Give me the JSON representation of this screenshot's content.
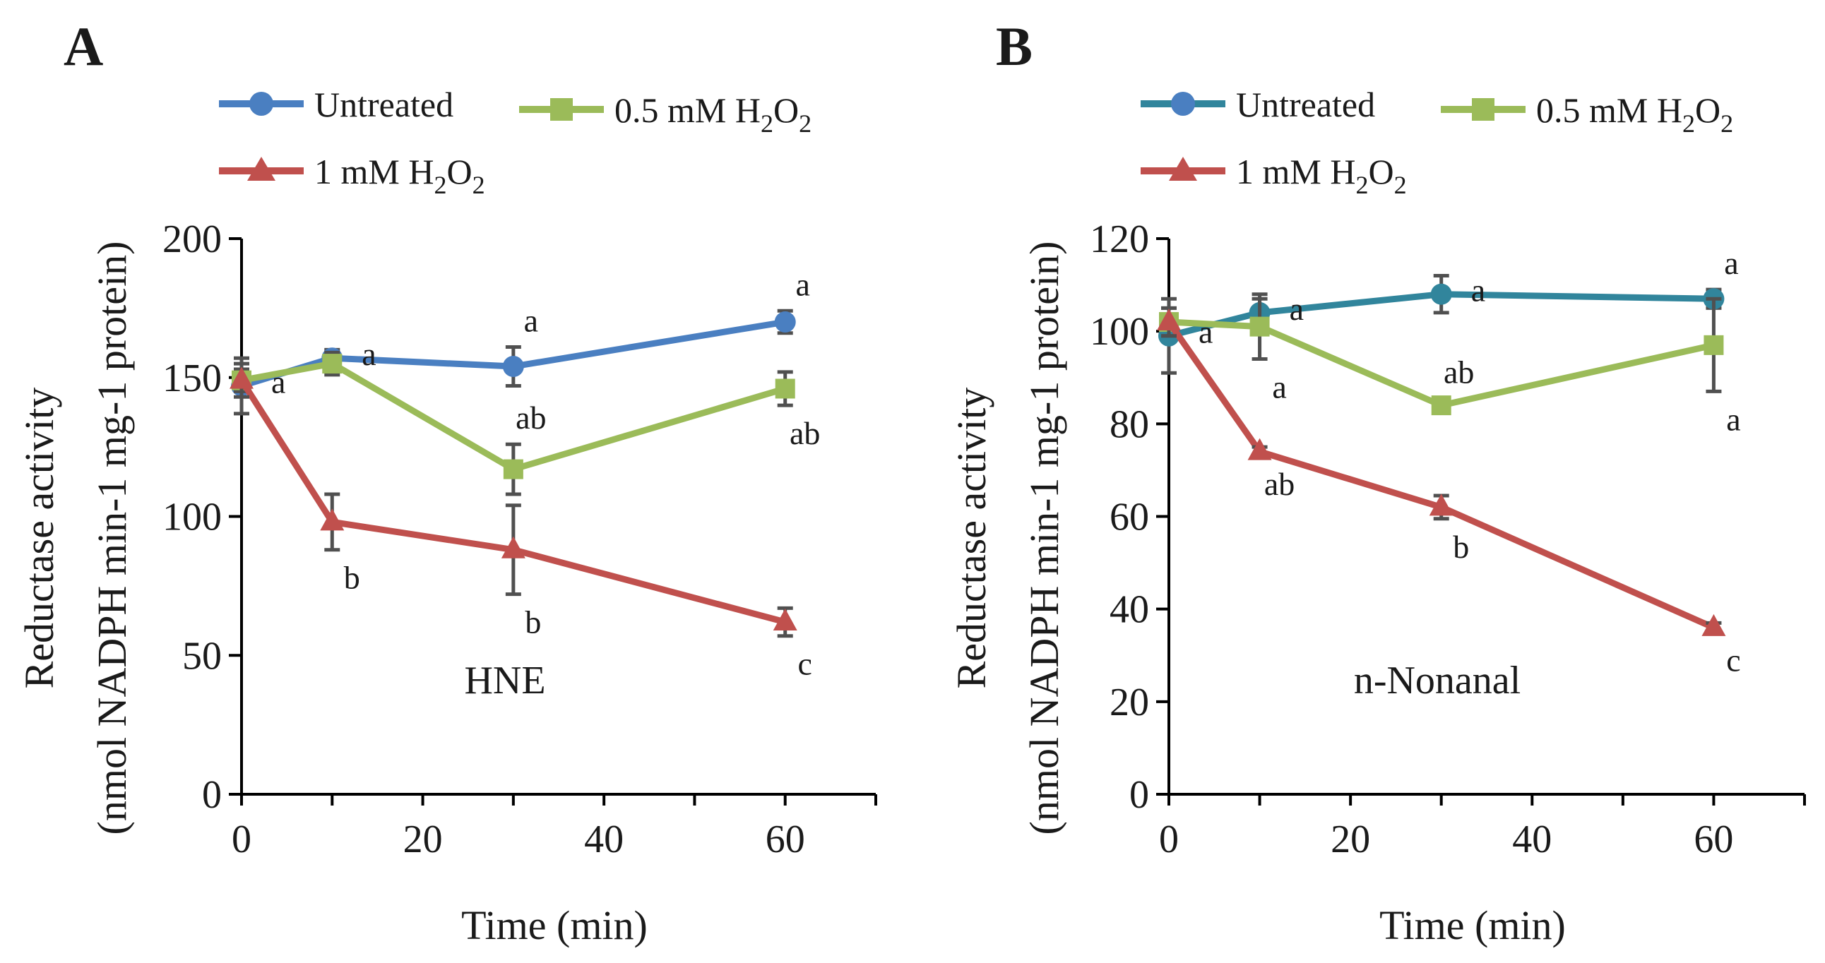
{
  "chart_data": [
    {
      "panel": "A",
      "type": "line",
      "annotation": "HNE",
      "xlabel": "Time (min)",
      "ylabel_line1": "Reductase activity",
      "ylabel_line2": "(nmol NADPH min-1 mg-1 protein)",
      "xlim": [
        0,
        70
      ],
      "ylim": [
        0,
        200
      ],
      "xticks": [
        0,
        20,
        40,
        60
      ],
      "yticks": [
        0,
        50,
        100,
        150,
        200
      ],
      "x": [
        0,
        10,
        30,
        60
      ],
      "series": [
        {
          "name": "Untreated",
          "color": "#4a7fc1",
          "marker": "circle",
          "values": [
            147,
            157,
            154,
            170
          ],
          "errors": [
            10,
            3,
            7,
            4
          ],
          "sig": [
            "a",
            "a",
            "a",
            "a"
          ],
          "sig_pos": [
            "right",
            "right",
            "above",
            "above"
          ]
        },
        {
          "name": "0.5 mM H2O2",
          "color": "#9bbb59",
          "marker": "square",
          "values": [
            149,
            155,
            117,
            146
          ],
          "errors": [
            4,
            4,
            9,
            6
          ],
          "sig": [
            "",
            "",
            "ab",
            "ab"
          ],
          "sig_pos": [
            "",
            "",
            "above",
            "below"
          ]
        },
        {
          "name": "1 mM H2O2",
          "color": "#c0504d",
          "marker": "triangle",
          "values": [
            149,
            98,
            88,
            62
          ],
          "errors": [
            6,
            10,
            16,
            5
          ],
          "sig": [
            "",
            "b",
            "b",
            "c"
          ],
          "sig_pos": [
            "",
            "below",
            "below",
            "below"
          ]
        }
      ]
    },
    {
      "panel": "B",
      "type": "line",
      "annotation": "n-Nonanal",
      "xlabel": "Time (min)",
      "ylabel_line1": "Reductase activity",
      "ylabel_line2": "(nmol NADPH min-1 mg-1 protein)",
      "xlim": [
        0,
        70
      ],
      "ylim": [
        0,
        120
      ],
      "xticks": [
        0,
        20,
        40,
        60
      ],
      "yticks": [
        0,
        20,
        40,
        60,
        80,
        100,
        120
      ],
      "x": [
        0,
        10,
        30,
        60
      ],
      "series": [
        {
          "name": "Untreated",
          "color": "#31859c",
          "marker": "circle",
          "values": [
            99,
            104,
            108,
            107
          ],
          "errors": [
            8,
            3,
            4,
            2
          ],
          "sig": [
            "a",
            "a",
            "a",
            "a"
          ],
          "sig_pos": [
            "right",
            "right",
            "right",
            "above"
          ]
        },
        {
          "name": "0.5 mM H2O2",
          "color": "#9bbb59",
          "marker": "square",
          "values": [
            102,
            101,
            84,
            97
          ],
          "errors": [
            3,
            7,
            1.5,
            10
          ],
          "sig": [
            "",
            "a",
            "ab",
            "a"
          ],
          "sig_pos": [
            "",
            "below",
            "above",
            "below"
          ]
        },
        {
          "name": "1 mM H2O2",
          "color": "#c0504d",
          "marker": "triangle",
          "values": [
            102,
            74,
            62,
            36
          ],
          "errors": [
            3,
            1,
            2.5,
            1
          ],
          "sig": [
            "",
            "ab",
            "b",
            "c"
          ],
          "sig_pos": [
            "",
            "below",
            "below",
            "below"
          ]
        }
      ]
    }
  ],
  "legend": {
    "untreated": "Untreated",
    "h2o2_05_prefix": "0.5 mM H",
    "h2o2_1_prefix": "1 mM H",
    "h_sub": "2",
    "o": "O",
    "o_sub": "2"
  }
}
